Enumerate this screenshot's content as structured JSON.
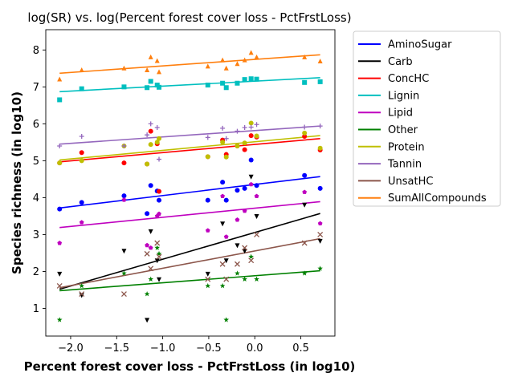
{
  "chart_data": {
    "type": "scatter",
    "title": "log(SR) vs. log(Percent forest cover loss - PctFrstLoss)",
    "xlabel": "Percent forest cover loss - PctFrstLoss (in log10)",
    "ylabel": "Species richness (in log10)",
    "xlim": [
      -2.27,
      0.87
    ],
    "ylim": [
      0.25,
      8.55
    ],
    "xticks": [
      -2.0,
      -1.5,
      -1.0,
      -0.5,
      0.0,
      0.5
    ],
    "xtick_labels": [
      "−2.0",
      "−1.5",
      "−1.0",
      "−0.5",
      "0.0",
      "0.5"
    ],
    "yticks": [
      1,
      2,
      3,
      4,
      5,
      6,
      7,
      8
    ],
    "ytick_labels": [
      "1",
      "2",
      "3",
      "4",
      "5",
      "6",
      "7",
      "8"
    ],
    "grid": false,
    "legend_position": "outside-right",
    "x": [
      -2.12,
      -1.88,
      -1.42,
      -1.17,
      -1.13,
      -1.06,
      -1.04,
      -0.51,
      -0.35,
      -0.31,
      -0.19,
      -0.11,
      -0.04,
      0.02,
      0.54,
      0.71
    ],
    "series": [
      {
        "name": "AminoSugar",
        "color": "#0000ff",
        "marker": "circle",
        "y": [
          3.69,
          3.87,
          4.05,
          3.57,
          4.33,
          4.18,
          3.93,
          3.93,
          4.42,
          3.93,
          4.2,
          4.25,
          5.02,
          4.33,
          4.6,
          4.25
        ],
        "fit": [
          3.72,
          4.57
        ]
      },
      {
        "name": "Carb",
        "color": "#000000",
        "marker": "triangle-down",
        "y": [
          1.94,
          1.36,
          2.56,
          0.69,
          3.09,
          2.3,
          1.79,
          1.94,
          3.3,
          2.3,
          2.71,
          2.56,
          4.57,
          3.5,
          3.81,
          2.83
        ],
        "fit": [
          1.52,
          3.57
        ]
      },
      {
        "name": "ConcHC",
        "color": "#ff0000",
        "marker": "circle",
        "y": [
          4.94,
          5.22,
          4.94,
          4.91,
          5.8,
          5.46,
          4.17,
          5.11,
          5.56,
          5.17,
          5.4,
          5.3,
          5.68,
          5.64,
          5.66,
          5.29
        ],
        "fit": [
          4.97,
          5.6
        ]
      },
      {
        "name": "Lignin",
        "color": "#00bfbf",
        "marker": "square",
        "y": [
          6.65,
          6.95,
          7.0,
          6.98,
          7.15,
          7.05,
          6.99,
          7.05,
          7.1,
          6.98,
          7.1,
          7.2,
          7.22,
          7.21,
          7.12,
          7.14
        ],
        "fit": [
          6.87,
          7.25
        ]
      },
      {
        "name": "Lipid",
        "color": "#bf00bf",
        "marker": "pentagon",
        "y": [
          2.77,
          3.33,
          3.94,
          2.71,
          2.64,
          3.5,
          3.56,
          3.11,
          4.04,
          2.94,
          3.4,
          3.64,
          4.36,
          4.04,
          4.15,
          3.3
        ],
        "fit": [
          3.19,
          3.89
        ]
      },
      {
        "name": "Other",
        "color": "#008000",
        "marker": "star",
        "y": [
          0.69,
          1.61,
          1.95,
          1.39,
          1.79,
          2.64,
          2.48,
          1.61,
          1.61,
          0.69,
          1.95,
          1.79,
          2.4,
          1.79,
          1.95,
          2.08
        ],
        "fit": [
          1.48,
          2.02
        ]
      },
      {
        "name": "Protein",
        "color": "#bfbf00",
        "marker": "circle",
        "y": [
          4.94,
          5.0,
          5.4,
          4.91,
          5.44,
          5.5,
          5.6,
          5.11,
          5.5,
          5.1,
          5.4,
          5.48,
          6.02,
          5.67,
          5.75,
          5.34
        ],
        "fit": [
          5.02,
          5.68
        ]
      },
      {
        "name": "Tannin",
        "color": "#9467bd",
        "marker": "plus",
        "y": [
          5.4,
          5.66,
          5.4,
          5.7,
          6.0,
          5.9,
          5.04,
          5.63,
          5.88,
          5.6,
          5.8,
          5.9,
          5.91,
          5.98,
          5.91,
          5.94
        ],
        "fit": [
          5.45,
          5.94
        ]
      },
      {
        "name": "UnsatHC",
        "color": "#8c564b",
        "marker": "x",
        "y": [
          1.61,
          1.39,
          1.39,
          2.48,
          2.08,
          2.77,
          2.4,
          1.79,
          2.2,
          1.79,
          2.2,
          2.64,
          2.3,
          3.0,
          2.77,
          3.0
        ],
        "fit": [
          1.56,
          2.89
        ]
      },
      {
        "name": "SumAllCompounds",
        "color": "#ff7f0e",
        "marker": "triangle-up",
        "y": [
          7.2,
          7.45,
          7.5,
          7.45,
          7.8,
          7.7,
          7.4,
          7.55,
          7.72,
          7.5,
          7.62,
          7.72,
          7.92,
          7.8,
          7.8,
          7.69
        ],
        "fit": [
          7.37,
          7.87
        ]
      }
    ]
  }
}
